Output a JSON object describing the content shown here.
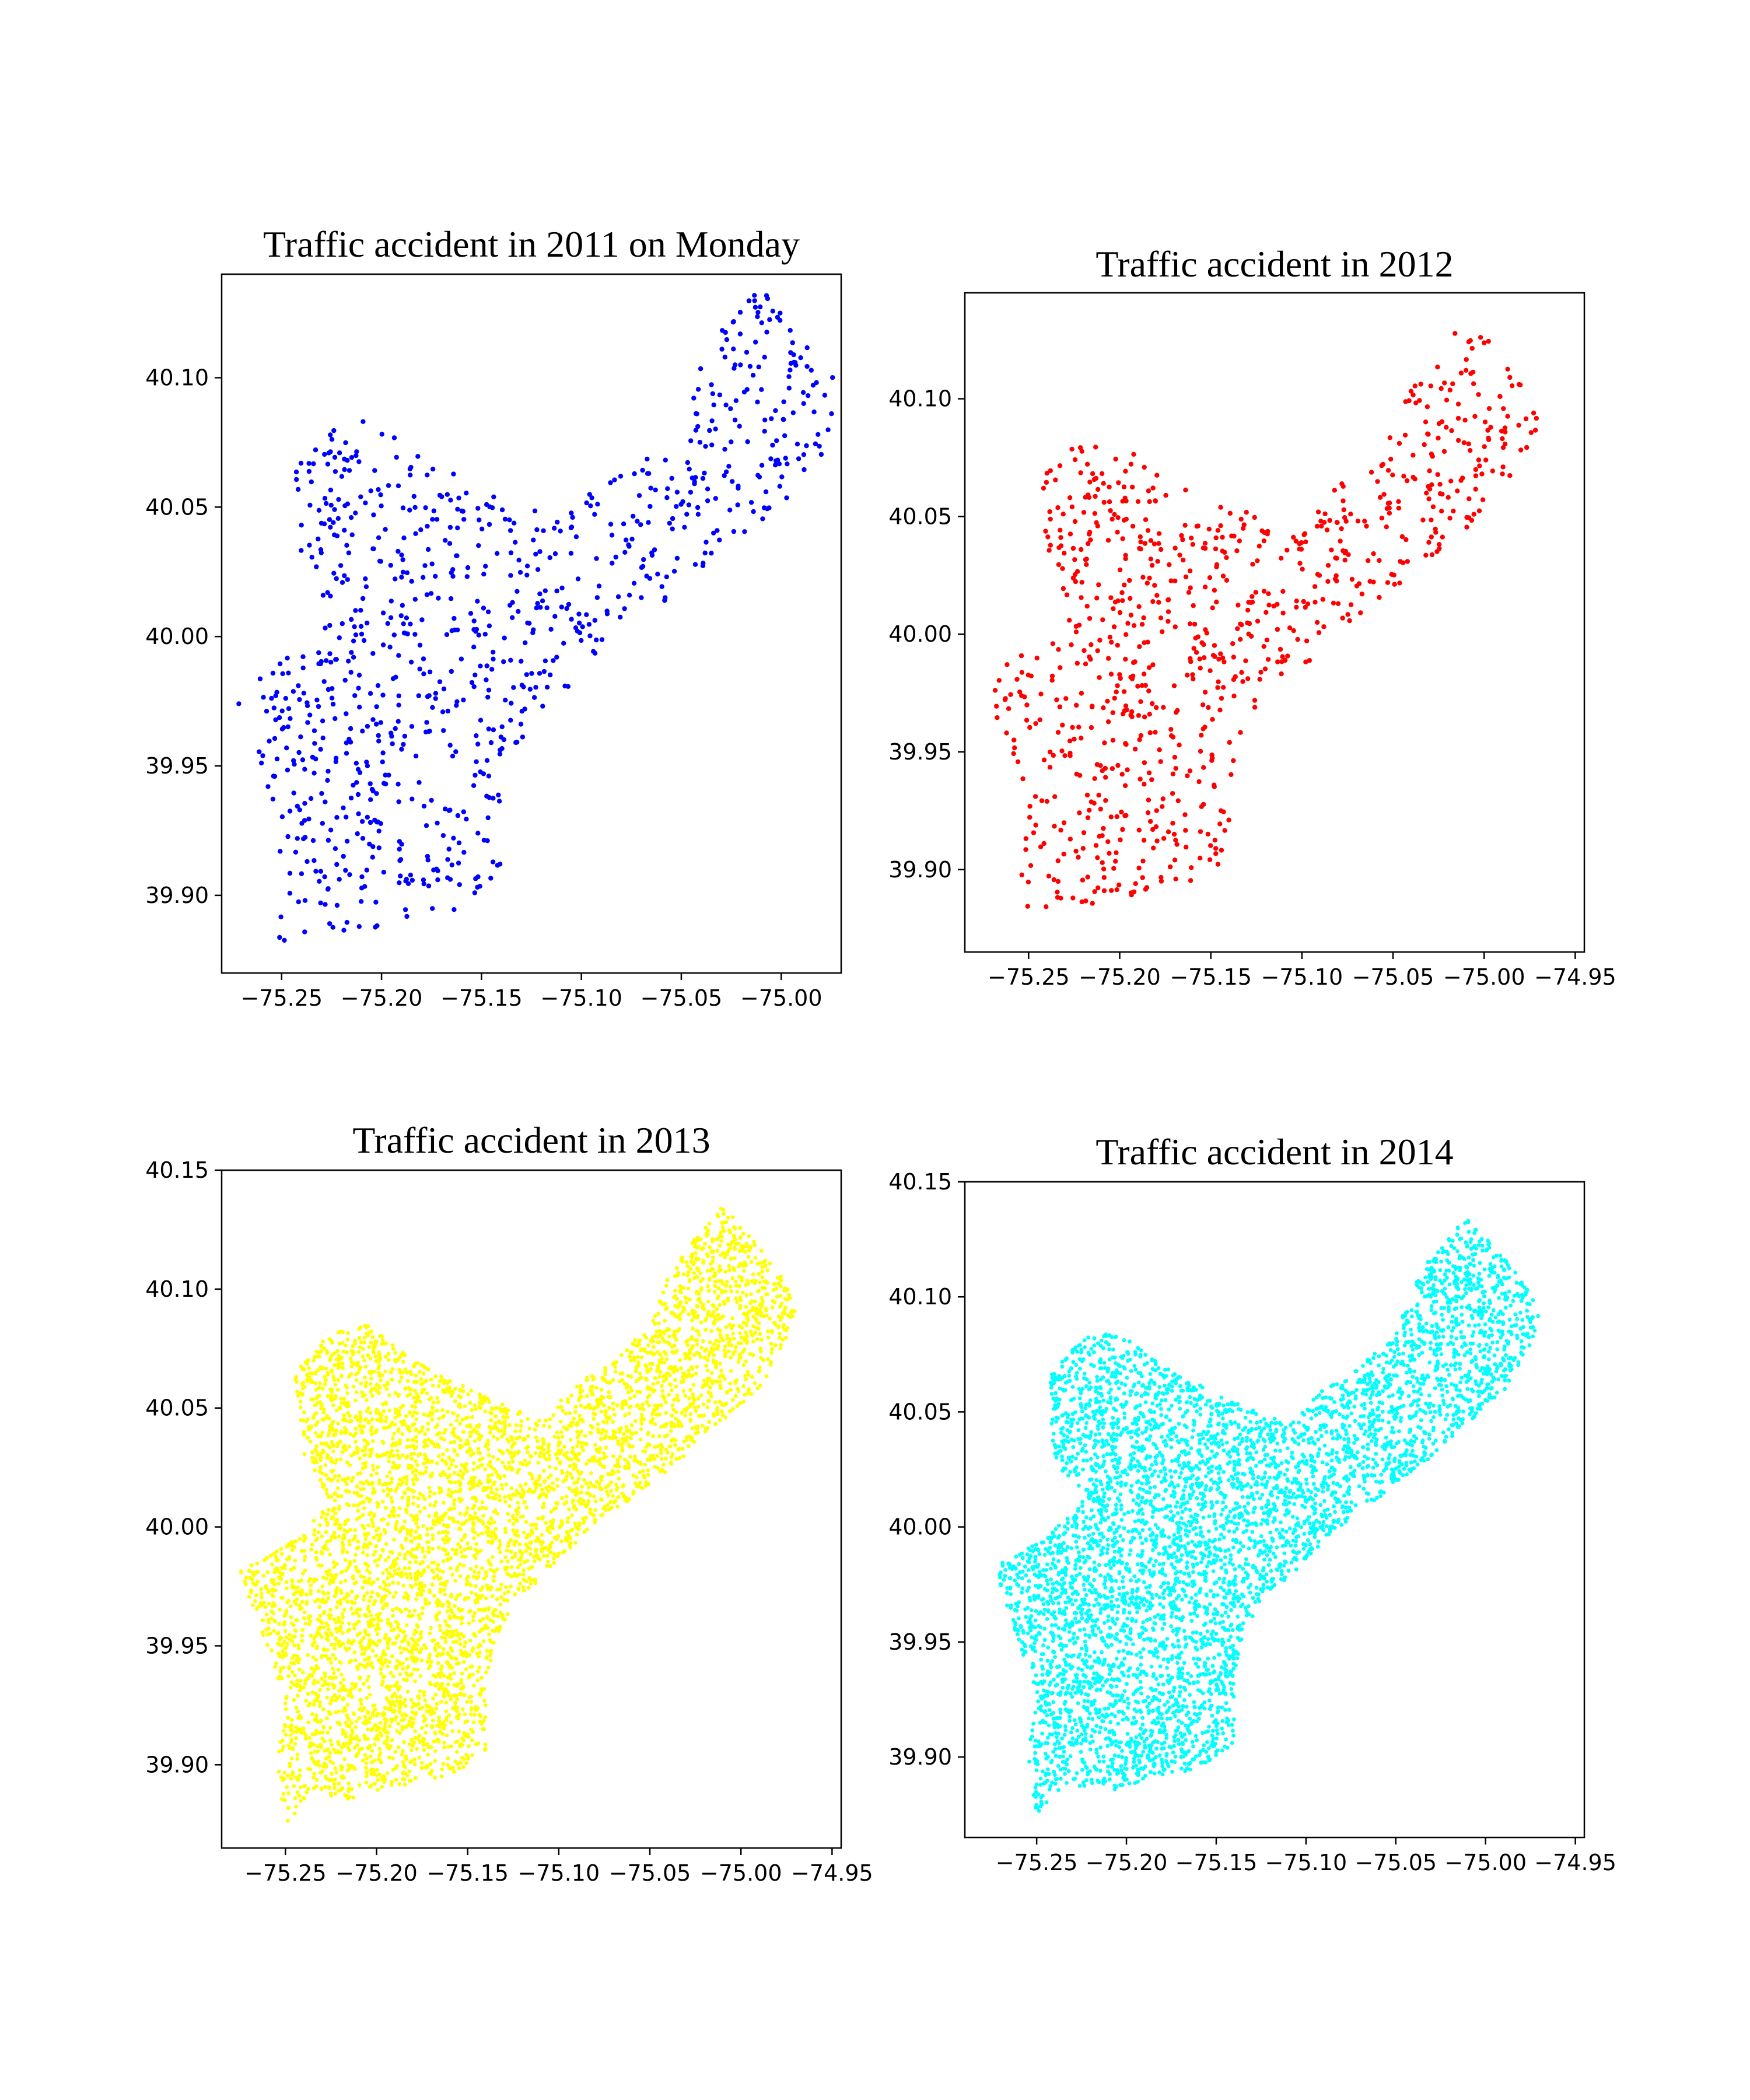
{
  "chart_data": [
    {
      "type": "scatter",
      "title": "Traffic accident in 2011 on Monday",
      "xlabel": "",
      "ylabel": "",
      "color": "#0000ff",
      "xlim": [
        -75.28,
        -74.97
      ],
      "ylim": [
        39.87,
        40.14
      ],
      "xticks": [
        -75.25,
        -75.2,
        -75.15,
        -75.1,
        -75.05,
        -75.0
      ],
      "xtick_labels": [
        "−75.25",
        "−75.20",
        "−75.15",
        "−75.10",
        "−75.05",
        "−75.00"
      ],
      "yticks": [
        39.9,
        39.95,
        40.0,
        40.05,
        40.1
      ],
      "ytick_labels": [
        "39.90",
        "39.95",
        "40.00",
        "40.05",
        "40.10"
      ],
      "point_count": 900,
      "grid": false
    },
    {
      "type": "scatter",
      "title": "Traffic accident in 2012",
      "xlabel": "",
      "ylabel": "",
      "color": "#ff0000",
      "xlim": [
        -75.285,
        -74.945
      ],
      "ylim": [
        39.865,
        40.145
      ],
      "xticks": [
        -75.25,
        -75.2,
        -75.15,
        -75.1,
        -75.05,
        -75.0,
        -74.95
      ],
      "xtick_labels": [
        "−75.25",
        "−75.20",
        "−75.15",
        "−75.10",
        "−75.05",
        "−75.00",
        "−74.95"
      ],
      "yticks": [
        39.9,
        39.95,
        40.0,
        40.05,
        40.1
      ],
      "ytick_labels": [
        "39.90",
        "39.95",
        "40.00",
        "40.05",
        "40.10"
      ],
      "point_count": 850,
      "grid": false
    },
    {
      "type": "scatter",
      "title": "Traffic accident in 2013",
      "xlabel": "",
      "ylabel": "",
      "color": "#ffff00",
      "xlim": [
        -75.285,
        -74.945
      ],
      "ylim": [
        39.865,
        40.15
      ],
      "xticks": [
        -75.25,
        -75.2,
        -75.15,
        -75.1,
        -75.05,
        -75.0,
        -74.95
      ],
      "xtick_labels": [
        "−75.25",
        "−75.20",
        "−75.15",
        "−75.10",
        "−75.05",
        "−75.00",
        "−74.95"
      ],
      "yticks": [
        39.9,
        39.95,
        40.0,
        40.05,
        40.1,
        40.15
      ],
      "ytick_labels": [
        "39.90",
        "39.95",
        "40.00",
        "40.05",
        "40.10",
        "40.15"
      ],
      "point_count": 5000,
      "grid": false
    },
    {
      "type": "scatter",
      "title": "Traffic accident in 2014",
      "xlabel": "",
      "ylabel": "",
      "color": "#00ffff",
      "xlim": [
        -75.29,
        -74.945
      ],
      "ylim": [
        39.865,
        40.15
      ],
      "xticks": [
        -75.25,
        -75.2,
        -75.15,
        -75.1,
        -75.05,
        -75.0,
        -74.95
      ],
      "xtick_labels": [
        "−75.25",
        "−75.20",
        "−75.15",
        "−75.10",
        "−75.05",
        "−75.00",
        "−74.95"
      ],
      "yticks": [
        39.9,
        39.95,
        40.0,
        40.05,
        40.1,
        40.15
      ],
      "ytick_labels": [
        "39.90",
        "39.95",
        "40.00",
        "40.05",
        "40.10",
        "40.15"
      ],
      "point_count": 5000,
      "grid": false
    }
  ]
}
